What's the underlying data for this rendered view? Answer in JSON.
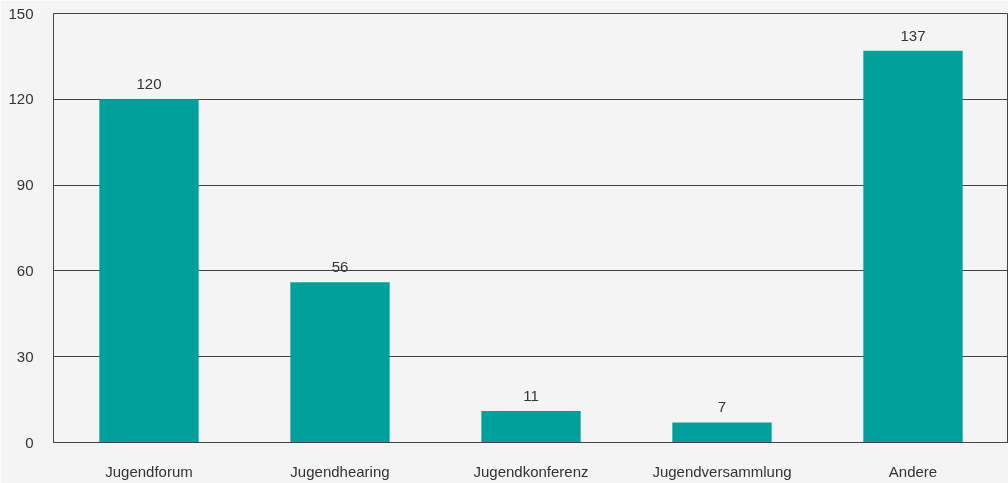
{
  "chart_data": {
    "type": "bar",
    "categories": [
      "Jugendforum",
      "Jugendhearing",
      "Jugendkonferenz",
      "Jugendversammlung",
      "Andere"
    ],
    "values": [
      120,
      56,
      11,
      7,
      137
    ],
    "color": "#00a19a",
    "ylim": [
      0,
      150
    ],
    "yticks": [
      0,
      30,
      60,
      90,
      120,
      150
    ],
    "grid": "y",
    "data_labels": true
  }
}
